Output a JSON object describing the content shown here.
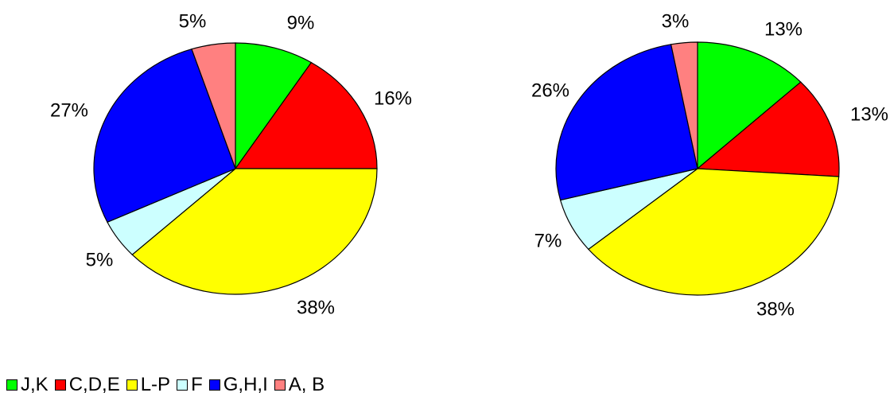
{
  "chart_data": [
    {
      "type": "pie",
      "categories": [
        "J,K",
        "C,D,E",
        "L-P",
        "F",
        "G,H,I",
        "A, B"
      ],
      "values": [
        9,
        16,
        38,
        5,
        27,
        5
      ],
      "labels": [
        "9%",
        "16%",
        "38%",
        "5%",
        "27%",
        "5%"
      ],
      "start": "12 o'clock",
      "direction": "clockwise"
    },
    {
      "type": "pie",
      "categories": [
        "J,K",
        "C,D,E",
        "L-P",
        "F",
        "G,H,I",
        "A, B"
      ],
      "values": [
        13,
        13,
        38,
        7,
        26,
        3
      ],
      "labels": [
        "13%",
        "13%",
        "38%",
        "7%",
        "26%",
        "3%"
      ],
      "start": "12 o'clock",
      "direction": "clockwise"
    }
  ],
  "legend": {
    "placement": "bottom-left",
    "items": [
      {
        "label": "J,K",
        "color": "#00ff00"
      },
      {
        "label": "C,D,E",
        "color": "#ff0000"
      },
      {
        "label": "L-P",
        "color": "#ffff00"
      },
      {
        "label": "F",
        "color": "#ccffff"
      },
      {
        "label": "G,H,I",
        "color": "#0000ff"
      },
      {
        "label": "A, B",
        "color": "#ff8080"
      }
    ]
  }
}
